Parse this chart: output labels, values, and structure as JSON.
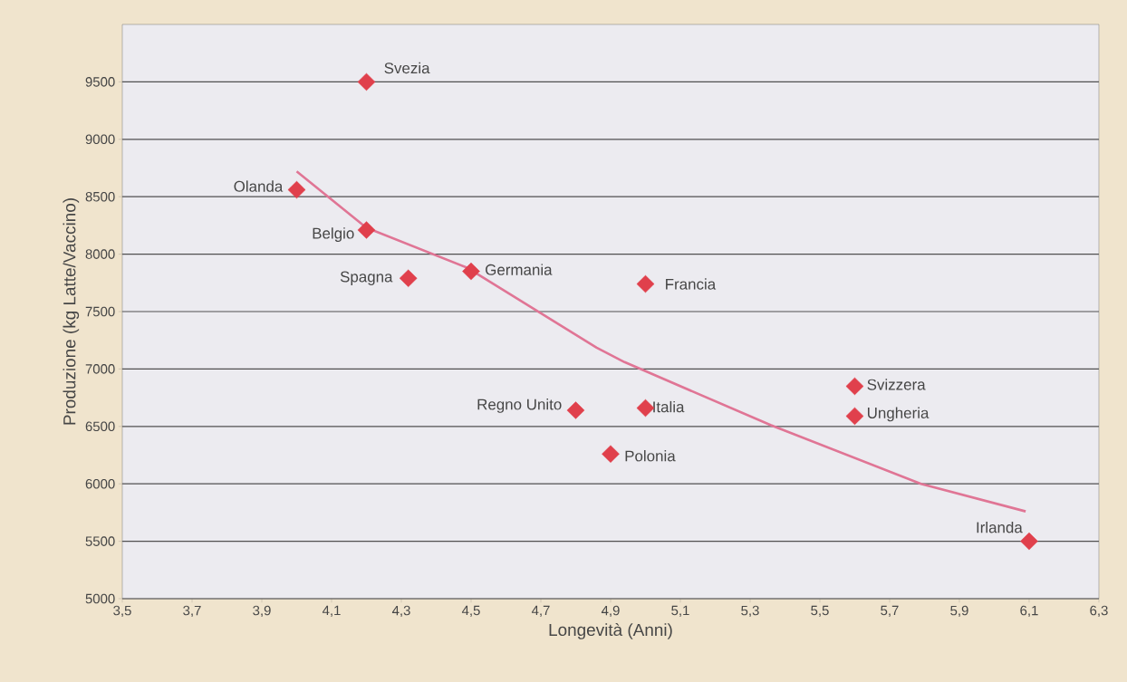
{
  "chart_data": {
    "type": "scatter",
    "xlabel": "Longevità (Anni)",
    "ylabel": "Produzione (kg Latte/Vaccino)",
    "xlim": [
      3.5,
      6.3
    ],
    "ylim": [
      5000,
      10000
    ],
    "xticks": [
      {
        "value": 3.5,
        "label": "3,5"
      },
      {
        "value": 3.7,
        "label": "3,7"
      },
      {
        "value": 3.9,
        "label": "3,9"
      },
      {
        "value": 4.1,
        "label": "4,1"
      },
      {
        "value": 4.3,
        "label": "4,3"
      },
      {
        "value": 4.5,
        "label": "4,5"
      },
      {
        "value": 4.7,
        "label": "4,7"
      },
      {
        "value": 4.9,
        "label": "4,9"
      },
      {
        "value": 5.1,
        "label": "5,1"
      },
      {
        "value": 5.3,
        "label": "5,3"
      },
      {
        "value": 5.5,
        "label": "5,5"
      },
      {
        "value": 5.7,
        "label": "5,7"
      },
      {
        "value": 5.9,
        "label": "5,9"
      },
      {
        "value": 6.1,
        "label": "6,1"
      },
      {
        "value": 6.3,
        "label": "6,3"
      }
    ],
    "yticks": [
      5000,
      5500,
      6000,
      6500,
      7000,
      7500,
      8000,
      8500,
      9000,
      9500
    ],
    "grid": "y",
    "series": [
      {
        "marker": "diamond",
        "color": "#e0404c",
        "x": [
          4.2,
          4.0,
          4.2,
          4.32,
          4.5,
          5.0,
          4.8,
          5.0,
          4.9,
          5.6,
          5.6,
          6.1
        ],
        "values": [
          9500,
          8560,
          8210,
          7790,
          7850,
          7740,
          6640,
          6660,
          6260,
          6850,
          6590,
          5500
        ]
      },
      {
        "type": "line",
        "marker": "none",
        "line_style": "solid",
        "color": "#e07595",
        "x": [
          4.0,
          4.2,
          4.49,
          4.86,
          4.94,
          5.36,
          5.79,
          6.09
        ],
        "values": [
          8720,
          8230,
          7880,
          7185,
          7060,
          6510,
          6000,
          5760
        ]
      }
    ],
    "annotations": [
      {
        "text": "Svezia",
        "x": 4.2,
        "y": 9500
      },
      {
        "text": "Olanda",
        "x": 4.0,
        "y": 8560
      },
      {
        "text": "Belgio",
        "x": 4.2,
        "y": 8210
      },
      {
        "text": "Spagna",
        "x": 4.32,
        "y": 7790
      },
      {
        "text": "Germania",
        "x": 4.5,
        "y": 7850
      },
      {
        "text": "Francia",
        "x": 5.0,
        "y": 7740
      },
      {
        "text": "Regno Unito",
        "x": 4.8,
        "y": 6640
      },
      {
        "text": "Italia",
        "x": 5.0,
        "y": 6660
      },
      {
        "text": "Polonia",
        "x": 4.9,
        "y": 6260
      },
      {
        "text": "Svizzera",
        "x": 5.6,
        "y": 6850
      },
      {
        "text": "Ungheria",
        "x": 5.6,
        "y": 6590
      },
      {
        "text": "Irlanda",
        "x": 6.1,
        "y": 5500
      }
    ]
  }
}
